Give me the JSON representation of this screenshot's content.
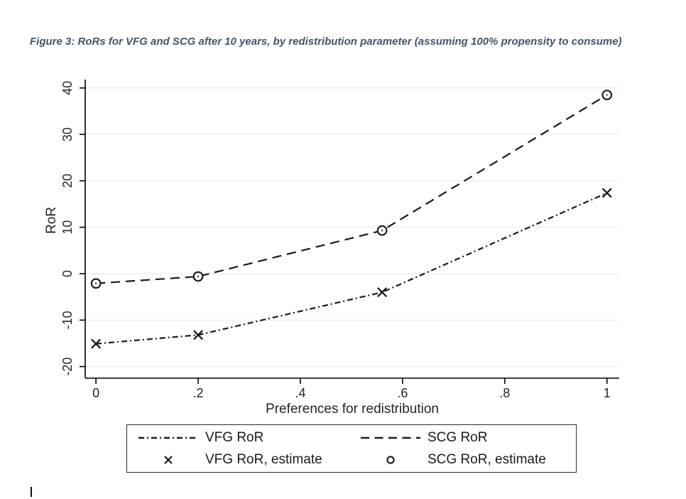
{
  "figure": {
    "caption": "Figure 3: RoRs for VFG and SCG after 10 years, by redistribution parameter (assuming 100% propensity to consume)",
    "caption_color": "#44546A"
  },
  "chart_data": {
    "type": "line",
    "title": "",
    "xlabel": "Preferences for redistribution",
    "ylabel": "RoR",
    "grid": true,
    "legend_position": "bottom",
    "xlim": [
      -0.021,
      1.024
    ],
    "ylim": [
      -22.5,
      41.8
    ],
    "x_tick_labels": [
      "0",
      ".2",
      ".4",
      ".6",
      ".8",
      "1"
    ],
    "x_tick_values": [
      0,
      0.2,
      0.4,
      0.6,
      0.8,
      1
    ],
    "y_tick_labels": [
      "-20",
      "-10",
      "0",
      "10",
      "20",
      "30",
      "40"
    ],
    "y_tick_values": [
      -20,
      -10,
      0,
      10,
      20,
      30,
      40
    ],
    "x": [
      0,
      0.2,
      0.56,
      1
    ],
    "series": [
      {
        "name": "VFG RoR",
        "marker_series_name": "VFG RoR, estimate",
        "line_style": "dashdot",
        "marker": "x",
        "values": [
          -15.1,
          -13.2,
          -4.0,
          17.4
        ]
      },
      {
        "name": "SCG RoR",
        "marker_series_name": "SCG RoR, estimate",
        "line_style": "dash",
        "marker": "circle",
        "values": [
          -2.1,
          -0.6,
          9.3,
          38.5
        ]
      }
    ],
    "colors": {
      "line": "#1a1a1a",
      "grid": "#ebebeb",
      "axis": "#000000",
      "tick_text": "#262626"
    }
  },
  "legend": {
    "entries": [
      {
        "label": "VFG RoR",
        "sample": "dashdot-line"
      },
      {
        "label": "SCG RoR",
        "sample": "dash-line"
      },
      {
        "label": "VFG RoR, estimate",
        "sample": "x-marker"
      },
      {
        "label": "SCG RoR, estimate",
        "sample": "circle-marker"
      }
    ]
  }
}
